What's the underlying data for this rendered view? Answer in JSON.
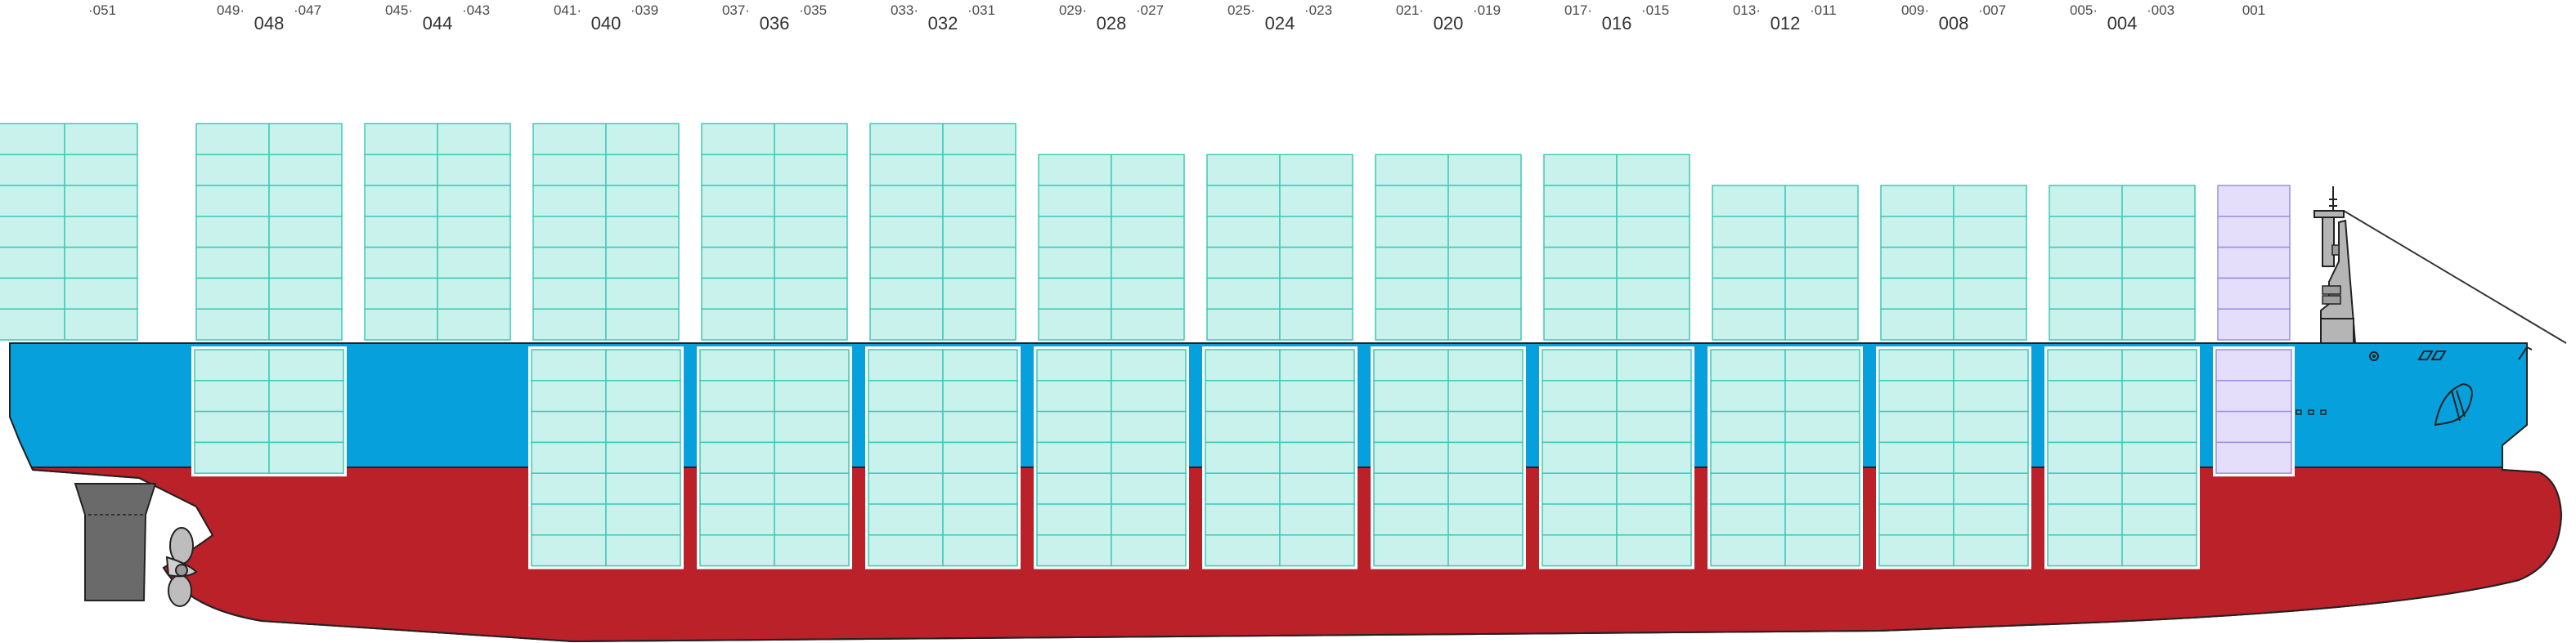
{
  "bays": [
    {
      "odd_left": "",
      "main": "",
      "odd_right": "051"
    },
    {
      "odd_left": "049",
      "main": "048",
      "odd_right": "047"
    },
    {
      "odd_left": "045",
      "main": "044",
      "odd_right": "043"
    },
    {
      "odd_left": "041",
      "main": "040",
      "odd_right": "039"
    },
    {
      "odd_left": "037",
      "main": "036",
      "odd_right": "035"
    },
    {
      "odd_left": "033",
      "main": "032",
      "odd_right": "031"
    },
    {
      "odd_left": "029",
      "main": "028",
      "odd_right": "027"
    },
    {
      "odd_left": "025",
      "main": "024",
      "odd_right": "023"
    },
    {
      "odd_left": "021",
      "main": "020",
      "odd_right": "019"
    },
    {
      "odd_left": "017",
      "main": "016",
      "odd_right": "015"
    },
    {
      "odd_left": "013",
      "main": "012",
      "odd_right": "011"
    },
    {
      "odd_left": "009",
      "main": "008",
      "odd_right": "007"
    },
    {
      "odd_left": "005",
      "main": "004",
      "odd_right": "003"
    },
    {
      "odd_left": "",
      "main": "",
      "odd_right": "001"
    }
  ],
  "deck_tiers": [
    7,
    7,
    7,
    7,
    7,
    7,
    6,
    6,
    6,
    6,
    5,
    5,
    5,
    5
  ],
  "hold_tiers": [
    0,
    4,
    0,
    7,
    7,
    7,
    7,
    7,
    7,
    7,
    7,
    7,
    7,
    4
  ],
  "colors": {
    "container_fill": "#c9f2ec",
    "container_stroke": "#3ec9b6",
    "bay001_fill": "#e4defa",
    "bay001_stroke": "#9a8fe0",
    "hull_upper": "#06a0dc",
    "hull_lower": "#bb2128",
    "superstructure": "#b5b5b5",
    "rudder": "#6a6a6a"
  }
}
